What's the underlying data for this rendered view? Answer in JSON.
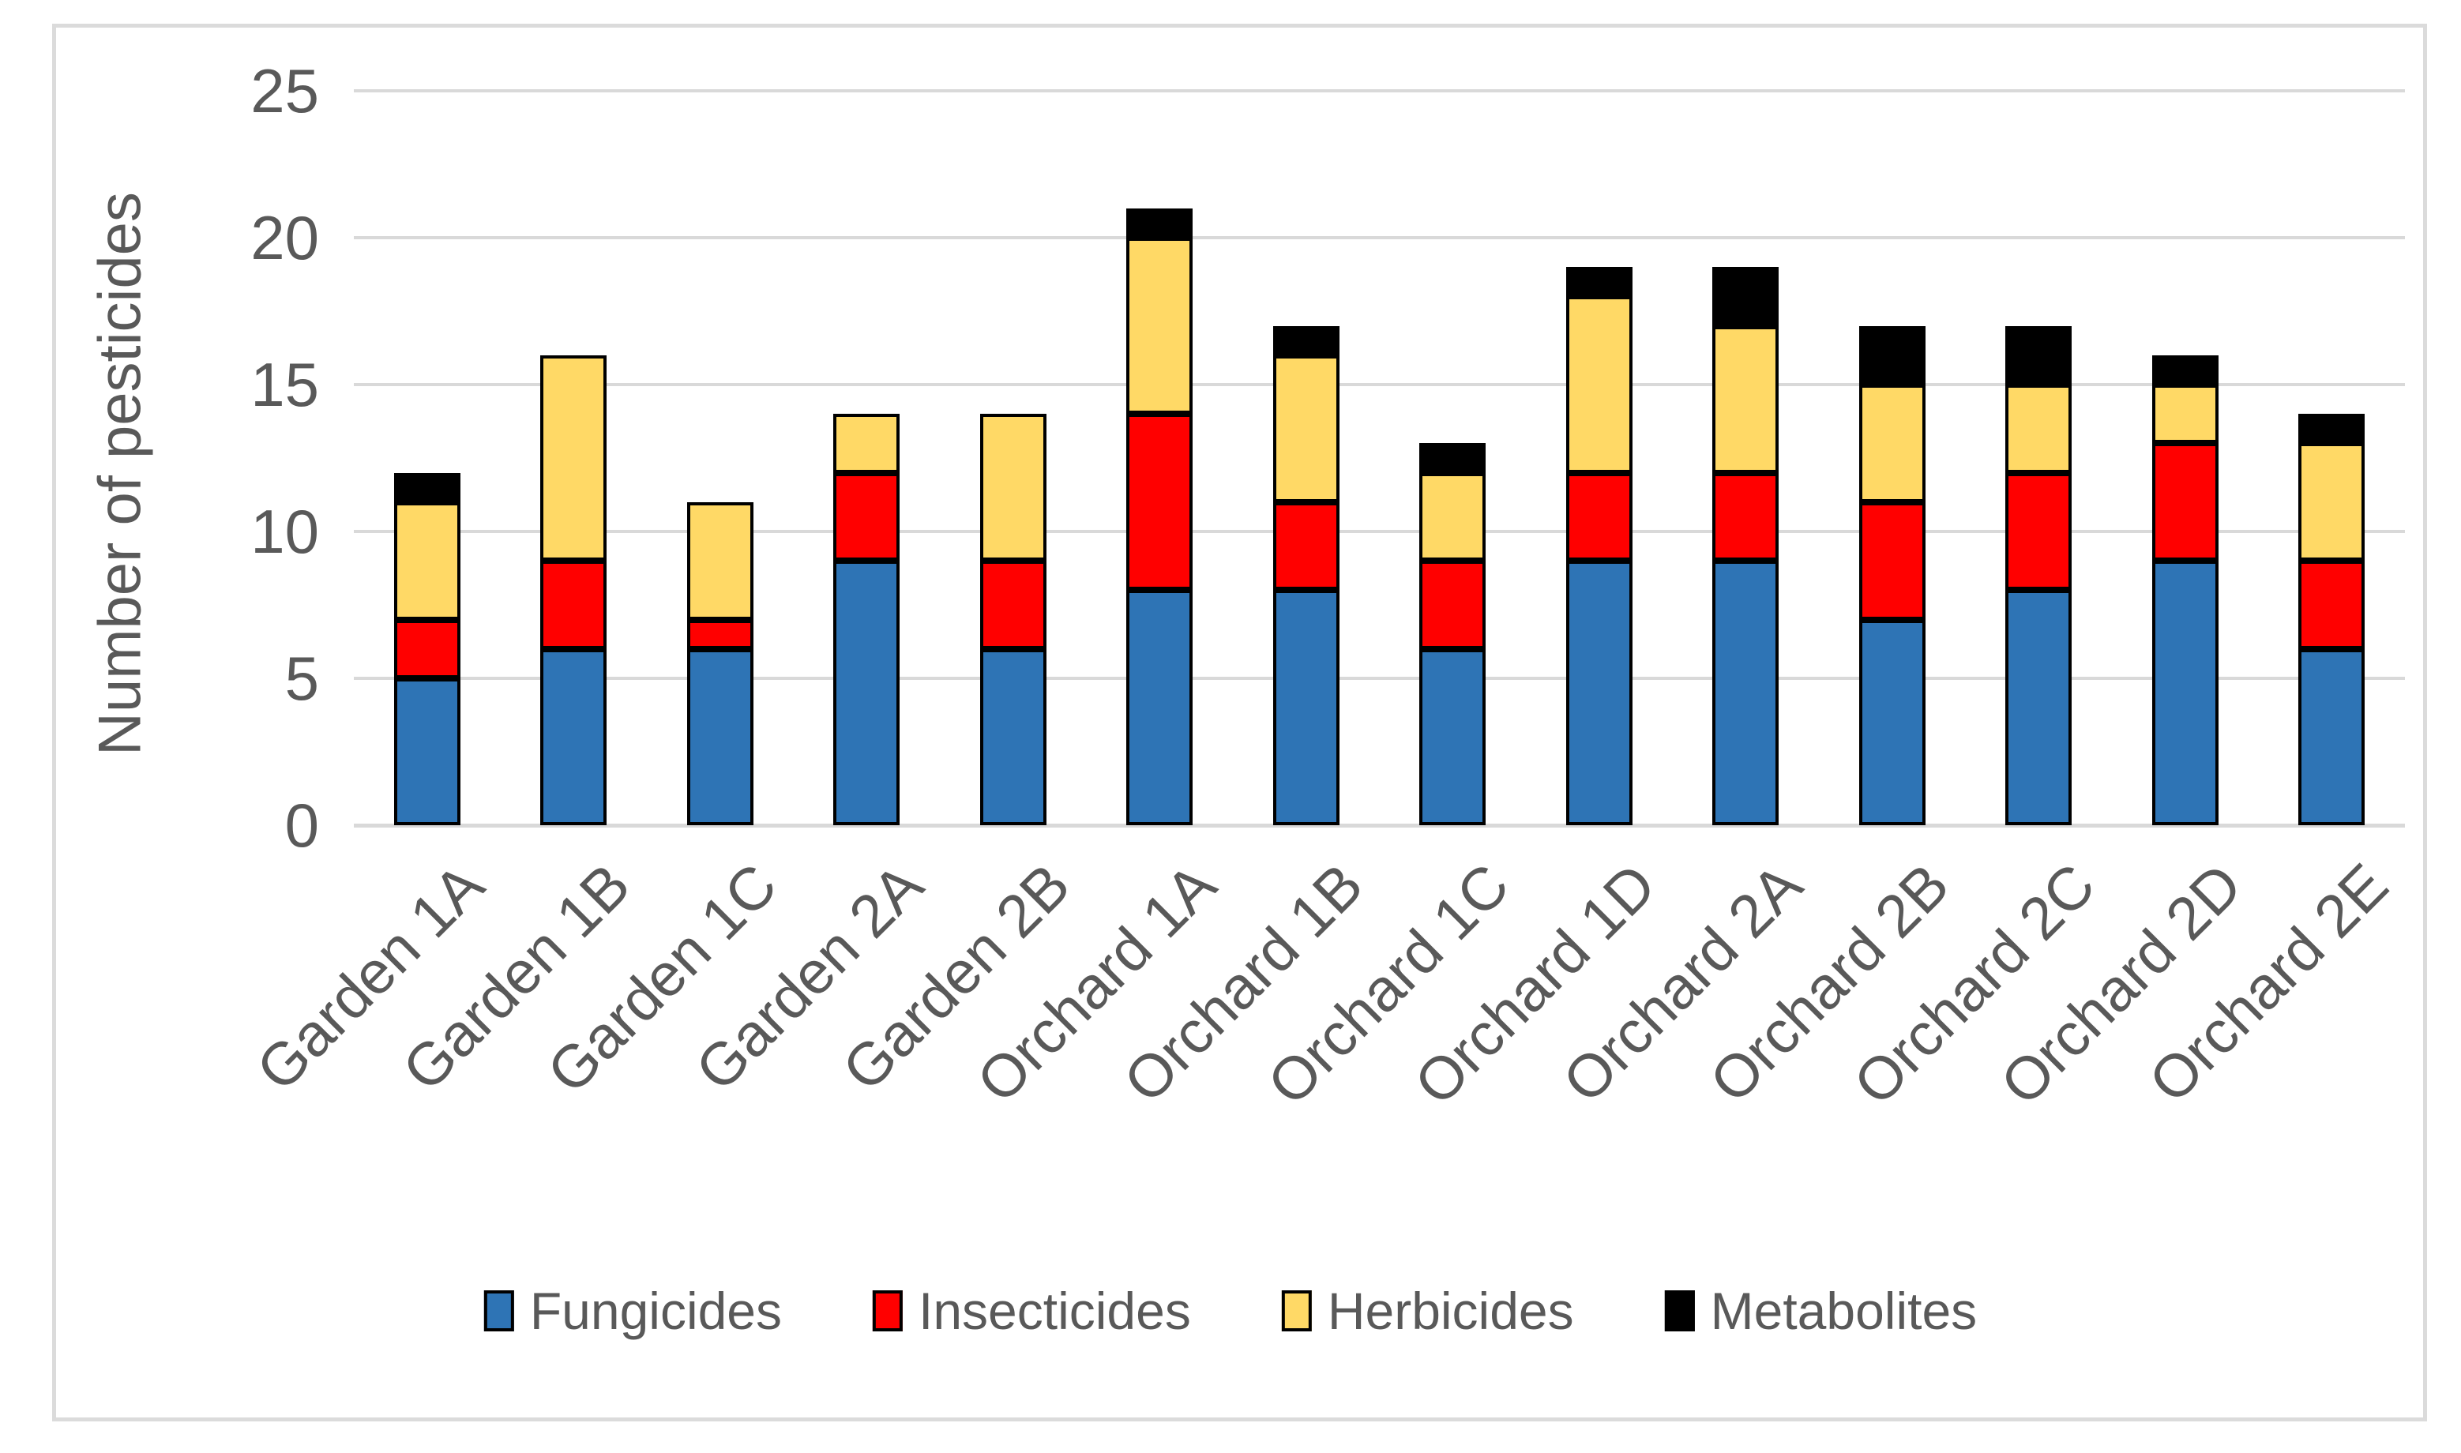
{
  "figure": {
    "background": "#FFFFFF",
    "border_color": "#DBDBDB"
  },
  "styles": {
    "axis_text_color": "#595959",
    "gridline_color": "#D9D9D9",
    "bar_border_color": "#000000"
  },
  "chart_data": {
    "type": "bar",
    "stacked": true,
    "title": "",
    "xlabel": "",
    "ylabel": "Number of pesticides",
    "ylim": [
      0,
      25
    ],
    "yticks": [
      0,
      5,
      10,
      15,
      20,
      25
    ],
    "grid": "horizontal",
    "legend_position": "bottom",
    "categories": [
      "Garden 1A",
      "Garden 1B",
      "Garden 1C",
      "Garden 2A",
      "Garden 2B",
      "Orchard 1A",
      "Orchard 1B",
      "Orchard 1C",
      "Orchard 1D",
      "Orchard 2A",
      "Orchard 2B",
      "Orchard 2C",
      "Orchard 2D",
      "Orchard 2E"
    ],
    "series": [
      {
        "name": "Fungicides",
        "color": "#2E74B5",
        "values": [
          5,
          6,
          6,
          9,
          6,
          8,
          8,
          6,
          9,
          9,
          7,
          8,
          9,
          6
        ]
      },
      {
        "name": "Insecticides",
        "color": "#FF0000",
        "values": [
          2,
          3,
          1,
          3,
          3,
          6,
          3,
          3,
          3,
          3,
          4,
          4,
          4,
          3
        ]
      },
      {
        "name": "Herbicides",
        "color": "#FFD966",
        "values": [
          4,
          7,
          4,
          2,
          5,
          6,
          5,
          3,
          6,
          5,
          4,
          3,
          2,
          4
        ]
      },
      {
        "name": "Metabolites",
        "color": "#000000",
        "values": [
          1,
          0,
          0,
          0,
          0,
          1,
          1,
          1,
          1,
          2,
          2,
          2,
          1,
          1
        ]
      }
    ]
  }
}
